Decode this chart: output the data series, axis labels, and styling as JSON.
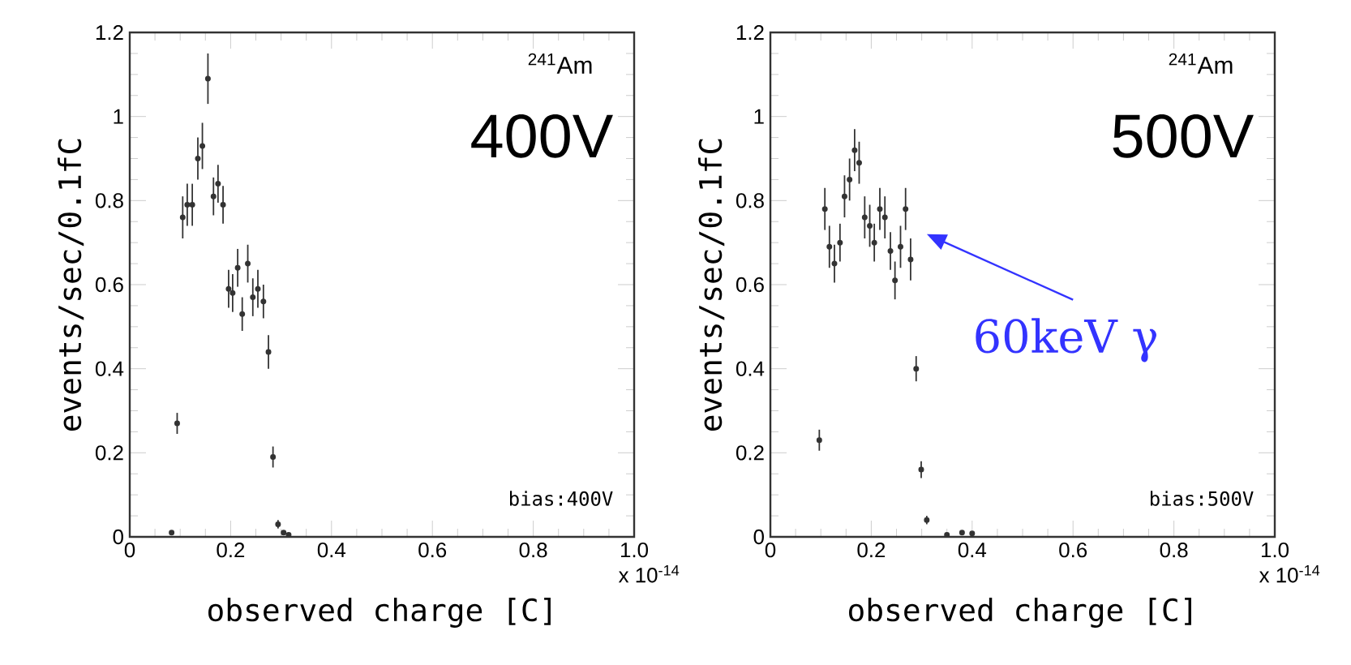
{
  "chart_data": [
    {
      "type": "scatter",
      "marker": "circle",
      "xlabel": "observed charge [C]",
      "ylabel": "events/sec/0.1fC",
      "xlim": [
        0,
        1
      ],
      "ylim": [
        0,
        1.2
      ],
      "xticks": [
        0,
        0.2,
        0.4,
        0.6,
        0.8,
        {
          "value": 1,
          "label": "1.0"
        }
      ],
      "yticks": [
        0,
        0.2,
        0.4,
        0.6,
        0.8,
        1,
        1.2
      ],
      "series": [
        {
          "color": "#333333",
          "x": [
            0.083,
            0.094,
            0.105,
            0.114,
            0.124,
            0.135,
            0.144,
            0.155,
            0.166,
            0.175,
            0.185,
            0.196,
            0.204,
            0.214,
            0.223,
            0.234,
            0.244,
            0.254,
            0.265,
            0.275,
            0.284,
            0.294,
            0.305,
            0.315
          ],
          "values": [
            0.01,
            0.27,
            0.76,
            0.79,
            0.79,
            0.9,
            0.93,
            1.09,
            0.81,
            0.84,
            0.79,
            0.59,
            0.58,
            0.64,
            0.53,
            0.65,
            0.57,
            0.59,
            0.56,
            0.44,
            0.19,
            0.03,
            0.01,
            0.005
          ],
          "errors": [
            null,
            0.025,
            0.05,
            0.05,
            0.05,
            0.05,
            0.055,
            0.06,
            0.045,
            0.045,
            0.045,
            0.045,
            0.045,
            0.045,
            0.04,
            0.045,
            0.045,
            0.045,
            0.04,
            0.04,
            0.025,
            0.01,
            null,
            null
          ]
        }
      ],
      "annotations": [
        "$^{241}$Am",
        "400V",
        "bias:400V",
        "x 10$^{-14}$"
      ]
    },
    {
      "type": "scatter",
      "marker": "circle",
      "xlabel": "observed charge [C]",
      "ylabel": "events/sec/0.1fC",
      "xlim": [
        0,
        1
      ],
      "ylim": [
        0,
        1.2
      ],
      "xticks": [
        0,
        0.2,
        0.4,
        0.6,
        0.8,
        {
          "value": 1,
          "label": "1.0"
        }
      ],
      "yticks": [
        0,
        0.2,
        0.4,
        0.6,
        0.8,
        1,
        1.2
      ],
      "series": [
        {
          "color": "#333333",
          "x": [
            0.097,
            0.108,
            0.117,
            0.127,
            0.138,
            0.147,
            0.157,
            0.167,
            0.176,
            0.187,
            0.197,
            0.206,
            0.217,
            0.227,
            0.238,
            0.247,
            0.258,
            0.268,
            0.278,
            0.289,
            0.299,
            0.31,
            0.35,
            0.38,
            0.4
          ],
          "values": [
            0.23,
            0.78,
            0.69,
            0.65,
            0.7,
            0.81,
            0.85,
            0.92,
            0.89,
            0.76,
            0.74,
            0.7,
            0.78,
            0.76,
            0.68,
            0.61,
            0.69,
            0.78,
            0.66,
            0.4,
            0.16,
            0.04,
            0.005,
            0.01,
            0.008
          ],
          "errors": [
            0.025,
            0.05,
            0.05,
            0.045,
            0.045,
            0.05,
            0.05,
            0.05,
            0.05,
            0.05,
            0.05,
            0.045,
            0.05,
            0.05,
            0.045,
            0.045,
            0.05,
            0.05,
            0.05,
            0.03,
            0.02,
            0.01,
            null,
            null,
            null
          ]
        }
      ],
      "annotations": [
        "$^{241}$Am",
        "500V",
        "bias:500V",
        "x 10$^{-14}$",
        "60keV γ"
      ]
    }
  ]
}
